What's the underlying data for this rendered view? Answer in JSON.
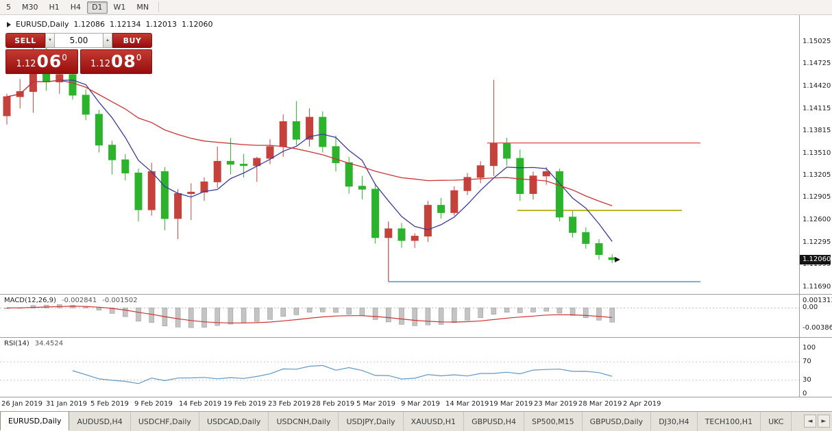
{
  "toolbar": {
    "timeframes": [
      {
        "label": "5",
        "active": false
      },
      {
        "label": "M30",
        "active": false
      },
      {
        "label": "H1",
        "active": false
      },
      {
        "label": "H4",
        "active": false
      },
      {
        "label": "D1",
        "active": true
      },
      {
        "label": "W1",
        "active": false
      },
      {
        "label": "MN",
        "active": false
      }
    ]
  },
  "chart_header": {
    "symbol": "EURUSD,Daily",
    "open": "1.12086",
    "high": "1.12134",
    "low": "1.12013",
    "close": "1.12060"
  },
  "trade_panel": {
    "sell_label": "SELL",
    "buy_label": "BUY",
    "volume": "5.00",
    "spin_down_icon": "▼",
    "spin_up_icon": "▲",
    "sell_price": {
      "prefix": "1.12",
      "big": "06",
      "sup": "0"
    },
    "buy_price": {
      "prefix": "1.12",
      "big": "08",
      "sup": "0"
    },
    "button_gradient": [
      "#c23a32",
      "#970d0d"
    ]
  },
  "price_axis": {
    "ticks": [
      "1.15025",
      "1.14725",
      "1.14420",
      "1.14115",
      "1.13815",
      "1.13510",
      "1.13205",
      "1.12905",
      "1.12600",
      "1.12295",
      "1.11995",
      "1.11690"
    ],
    "current_price": "1.12060",
    "current_price_value": 1.1206
  },
  "macd_panel": {
    "name": "MACD(12,26,9)",
    "value_main": "-0.002841",
    "value_signal": "-0.001502",
    "axis_ticks": [
      {
        "label": "0.001313",
        "value": 0.001313
      },
      {
        "label": "0.00",
        "value": 0
      },
      {
        "label": "-0.003862",
        "value": -0.003862
      }
    ]
  },
  "rsi_panel": {
    "name": "RSI(14)",
    "value": "34.4524",
    "axis_ticks": [
      {
        "label": "100",
        "value": 100
      },
      {
        "label": "70",
        "value": 70
      },
      {
        "label": "30",
        "value": 30
      },
      {
        "label": "0",
        "value": 0
      }
    ],
    "levels": [
      70,
      30
    ]
  },
  "tabs": {
    "items": [
      {
        "label": "EURUSD,Daily",
        "active": true
      },
      {
        "label": "AUDUSD,H4",
        "active": false
      },
      {
        "label": "USDCHF,Daily",
        "active": false
      },
      {
        "label": "USDCAD,Daily",
        "active": false
      },
      {
        "label": "USDCNH,Daily",
        "active": false
      },
      {
        "label": "USDJPY,Daily",
        "active": false
      },
      {
        "label": "XAUUSD,H1",
        "active": false
      },
      {
        "label": "GBPUSD,H4",
        "active": false
      },
      {
        "label": "SP500,M15",
        "active": false
      },
      {
        "label": "GBPUSD,Daily",
        "active": false
      },
      {
        "label": "DJ30,H4",
        "active": false
      },
      {
        "label": "TECH100,H1",
        "active": false
      },
      {
        "label": "UKC",
        "active": false
      }
    ],
    "scroll_left_icon": "◄",
    "scroll_right_icon": "►"
  },
  "chart_data": {
    "type": "candlestick",
    "title": "EURUSD,Daily",
    "symbol": "EURUSD",
    "timeframe": "D1",
    "price_range": [
      1.1163,
      1.1527
    ],
    "x_labels": [
      "26 Jan 2019",
      "31 Jan 2019",
      "5 Feb 2019",
      "9 Feb 2019",
      "14 Feb 2019",
      "19 Feb 2019",
      "23 Feb 2019",
      "28 Feb 2019",
      "5 Mar 2019",
      "9 Mar 2019",
      "14 Mar 2019",
      "19 Mar 2019",
      "23 Mar 2019",
      "28 Mar 2019",
      "2 Apr 2019"
    ],
    "colors": {
      "bull": "#c5423c",
      "bear": "#2cb32c",
      "ma_fast": "#3a3a9e",
      "ma_slow": "#cc3333",
      "macd_hist": "#c4c4c4",
      "macd_signal": "#cc3333",
      "rsi": "#5f97c5",
      "hline_red": "#e04545",
      "hline_olive": "#b5b520",
      "hline_blue": "#4f94cd"
    },
    "candles": [
      [
        1.1402,
        1.1432,
        1.139,
        1.1428
      ],
      [
        1.1428,
        1.1452,
        1.1412,
        1.1435
      ],
      [
        1.1435,
        1.1502,
        1.1406,
        1.1482
      ],
      [
        1.1482,
        1.1496,
        1.1436,
        1.1448
      ],
      [
        1.1448,
        1.1488,
        1.1432,
        1.1458
      ],
      [
        1.1458,
        1.146,
        1.1424,
        1.143
      ],
      [
        1.143,
        1.1438,
        1.1396,
        1.1404
      ],
      [
        1.1404,
        1.141,
        1.1352,
        1.1362
      ],
      [
        1.1362,
        1.1368,
        1.1322,
        1.1342
      ],
      [
        1.1342,
        1.135,
        1.1314,
        1.1324
      ],
      [
        1.1324,
        1.133,
        1.1258,
        1.1274
      ],
      [
        1.1274,
        1.1338,
        1.1266,
        1.1326
      ],
      [
        1.1326,
        1.1332,
        1.1246,
        1.1262
      ],
      [
        1.1262,
        1.1302,
        1.1234,
        1.1296
      ],
      [
        1.1296,
        1.131,
        1.126,
        1.1298
      ],
      [
        1.1298,
        1.1318,
        1.1286,
        1.1312
      ],
      [
        1.1312,
        1.136,
        1.1304,
        1.134
      ],
      [
        1.134,
        1.1372,
        1.1322,
        1.1336
      ],
      [
        1.1336,
        1.135,
        1.1318,
        1.1334
      ],
      [
        1.1334,
        1.1346,
        1.1312,
        1.1344
      ],
      [
        1.1344,
        1.137,
        1.1336,
        1.136
      ],
      [
        1.136,
        1.1404,
        1.1346,
        1.1394
      ],
      [
        1.1394,
        1.1422,
        1.1362,
        1.137
      ],
      [
        1.137,
        1.1412,
        1.136,
        1.14
      ],
      [
        1.14,
        1.1408,
        1.1352,
        1.136
      ],
      [
        1.136,
        1.1375,
        1.1326,
        1.1338
      ],
      [
        1.1338,
        1.1346,
        1.1296,
        1.1306
      ],
      [
        1.1306,
        1.132,
        1.1288,
        1.1302
      ],
      [
        1.1302,
        1.131,
        1.1228,
        1.1236
      ],
      [
        1.1236,
        1.1258,
        1.1176,
        1.1248
      ],
      [
        1.1248,
        1.1256,
        1.1222,
        1.1232
      ],
      [
        1.1232,
        1.1242,
        1.1222,
        1.1238
      ],
      [
        1.1238,
        1.1286,
        1.123,
        1.128
      ],
      [
        1.128,
        1.129,
        1.1262,
        1.127
      ],
      [
        1.127,
        1.1306,
        1.1266,
        1.13
      ],
      [
        1.13,
        1.1324,
        1.1294,
        1.1318
      ],
      [
        1.1318,
        1.134,
        1.131,
        1.1334
      ],
      [
        1.1334,
        1.1451,
        1.132,
        1.1364
      ],
      [
        1.1364,
        1.1372,
        1.1334,
        1.1344
      ],
      [
        1.1344,
        1.1356,
        1.1286,
        1.1296
      ],
      [
        1.1296,
        1.1326,
        1.1288,
        1.132
      ],
      [
        1.132,
        1.1332,
        1.1308,
        1.1326
      ],
      [
        1.1326,
        1.133,
        1.1258,
        1.1264
      ],
      [
        1.1264,
        1.1272,
        1.1236,
        1.1243
      ],
      [
        1.1243,
        1.125,
        1.1221,
        1.1228
      ],
      [
        1.1228,
        1.1234,
        1.1206,
        1.1213
      ],
      [
        1.12086,
        1.12134,
        1.12013,
        1.1206
      ]
    ],
    "moving_averages": [
      {
        "type": "sma",
        "period": 5,
        "color": "ma_fast"
      },
      {
        "type": "sma",
        "period": 21,
        "color": "ma_slow"
      }
    ],
    "hlines": [
      {
        "price": 1.1365,
        "from": 36.5,
        "to": 52.7,
        "color": "hline_red",
        "width": 1.3
      },
      {
        "price": 1.1273,
        "from": 38.8,
        "to": 51.3,
        "color": "hline_olive",
        "width": 2
      },
      {
        "price": 1.1176,
        "from": 29.0,
        "to": 52.7,
        "color": "hline_blue",
        "width": 1.5,
        "riser_top": 1.1256
      }
    ],
    "macd": {
      "fast": 12,
      "slow": 26,
      "signal": 9,
      "range": [
        -0.005,
        0.002
      ]
    },
    "rsi": {
      "period": 14,
      "range": [
        0,
        100
      ]
    }
  }
}
